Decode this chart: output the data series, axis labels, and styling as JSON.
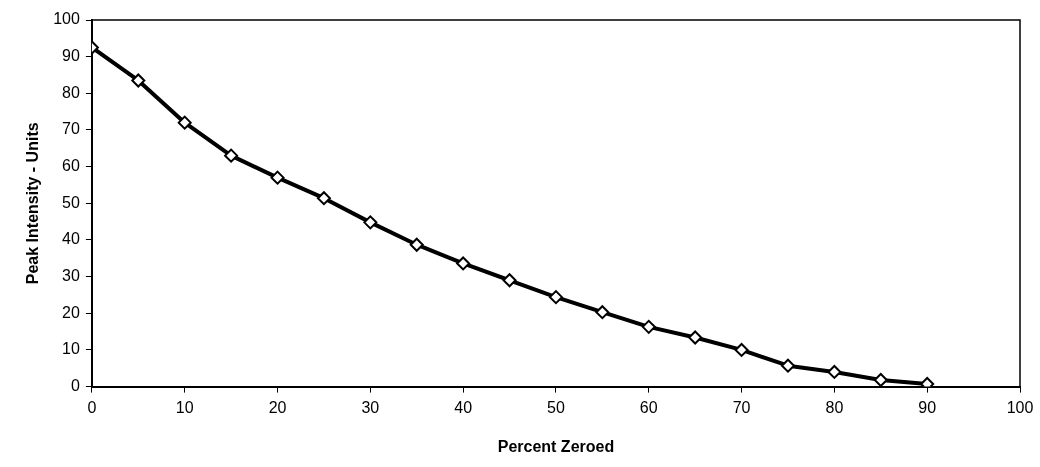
{
  "chart_data": {
    "type": "line",
    "xlabel": "Percent Zeroed",
    "ylabel": "Peak Intensity - Units",
    "x": [
      0,
      5,
      10,
      15,
      20,
      25,
      30,
      35,
      40,
      45,
      50,
      55,
      60,
      65,
      70,
      75,
      80,
      85,
      90
    ],
    "series": [
      {
        "color": "#000000",
        "values": [
          92.5,
          83.5,
          72,
          63,
          57,
          51.4,
          44.8,
          38.7,
          33.6,
          29,
          24.4,
          20.3,
          16.3,
          13.4,
          10,
          5.7,
          4,
          1.8,
          0.7
        ]
      }
    ],
    "xlim": [
      0,
      100
    ],
    "xticks": [
      0,
      10,
      20,
      30,
      40,
      50,
      60,
      70,
      80,
      90,
      100
    ],
    "ylim": [
      0,
      100
    ],
    "yticks": [
      0,
      10,
      20,
      30,
      40,
      50,
      60,
      70,
      80,
      90,
      100
    ],
    "marker": "diamond",
    "line_style": "solid",
    "grid": false,
    "legend": false
  }
}
